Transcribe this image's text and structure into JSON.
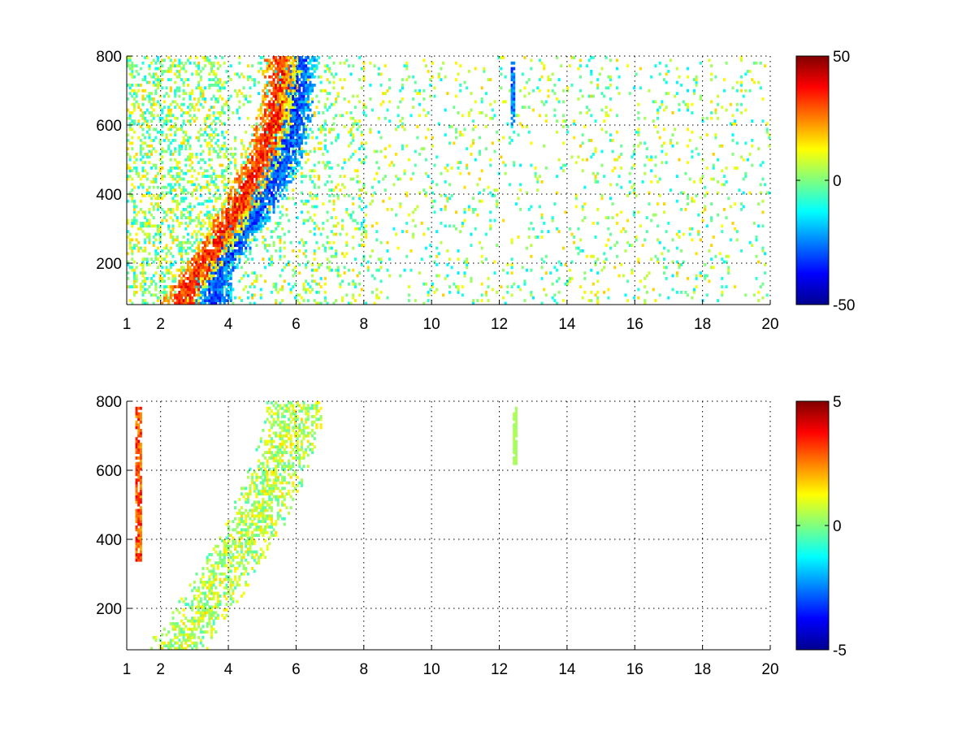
{
  "chart_data": [
    {
      "type": "heatmap",
      "title": "",
      "xlabel": "",
      "ylabel": "",
      "xlim": [
        1,
        20
      ],
      "ylim": [
        80,
        800
      ],
      "x_ticks": [
        1,
        2,
        4,
        6,
        8,
        10,
        12,
        14,
        16,
        18,
        20
      ],
      "x_tick_labels": [
        "1",
        "2",
        "4",
        "6",
        "8",
        "10",
        "12",
        "14",
        "16",
        "18",
        "20"
      ],
      "y_ticks": [
        200,
        400,
        600,
        800
      ],
      "y_tick_labels": [
        "200",
        "400",
        "600",
        "800"
      ],
      "grid": true,
      "colormap": "jet",
      "colorbar": {
        "range": [
          -50,
          50
        ],
        "ticks": [
          -50,
          0,
          50
        ],
        "tick_labels": [
          "-50",
          "0",
          "50"
        ],
        "placement": "right"
      },
      "features": [
        {
          "name": "positive ridge",
          "points": [
            [
              2.6,
              95
            ],
            [
              3.3,
              200
            ],
            [
              3.9,
              290
            ],
            [
              4.5,
              400
            ],
            [
              5.1,
              520
            ],
            [
              5.5,
              660
            ],
            [
              5.6,
              790
            ]
          ],
          "value": 35
        },
        {
          "name": "negative ridge",
          "points": [
            [
              3.6,
              170
            ],
            [
              4.2,
              250
            ],
            [
              4.9,
              360
            ],
            [
              5.5,
              470
            ],
            [
              5.9,
              600
            ],
            [
              6.1,
              790
            ]
          ],
          "value": -30
        },
        {
          "name": "vertical streak",
          "x": 12.4,
          "ymin": 600,
          "ymax": 780,
          "value": -35
        }
      ]
    },
    {
      "type": "heatmap",
      "title": "",
      "xlabel": "",
      "ylabel": "",
      "xlim": [
        1,
        20
      ],
      "ylim": [
        80,
        800
      ],
      "x_ticks": [
        1,
        2,
        4,
        6,
        8,
        10,
        12,
        14,
        16,
        18,
        20
      ],
      "x_tick_labels": [
        "1",
        "2",
        "4",
        "6",
        "8",
        "10",
        "12",
        "14",
        "16",
        "18",
        "20"
      ],
      "y_ticks": [
        200,
        400,
        600,
        800
      ],
      "y_tick_labels": [
        "200",
        "400",
        "600",
        "800"
      ],
      "grid": true,
      "colormap": "jet",
      "colorbar": {
        "range": [
          -5,
          5
        ],
        "ticks": [
          -5,
          0,
          5
        ],
        "tick_labels": [
          "-5",
          "0",
          "5"
        ],
        "placement": "right"
      },
      "features": [
        {
          "name": "main cluster",
          "points": [
            [
              2.5,
              95
            ],
            [
              3.3,
              200
            ],
            [
              3.8,
              280
            ],
            [
              4.6,
              400
            ],
            [
              5.3,
              560
            ],
            [
              5.8,
              700
            ],
            [
              6.0,
              790
            ]
          ],
          "value": 0.6
        },
        {
          "name": "edge streak",
          "x": 1.35,
          "ymin": 340,
          "ymax": 780,
          "value": 4
        },
        {
          "name": "small streak",
          "x": 12.45,
          "ymin": 620,
          "ymax": 780,
          "value": 0.5
        }
      ]
    }
  ]
}
